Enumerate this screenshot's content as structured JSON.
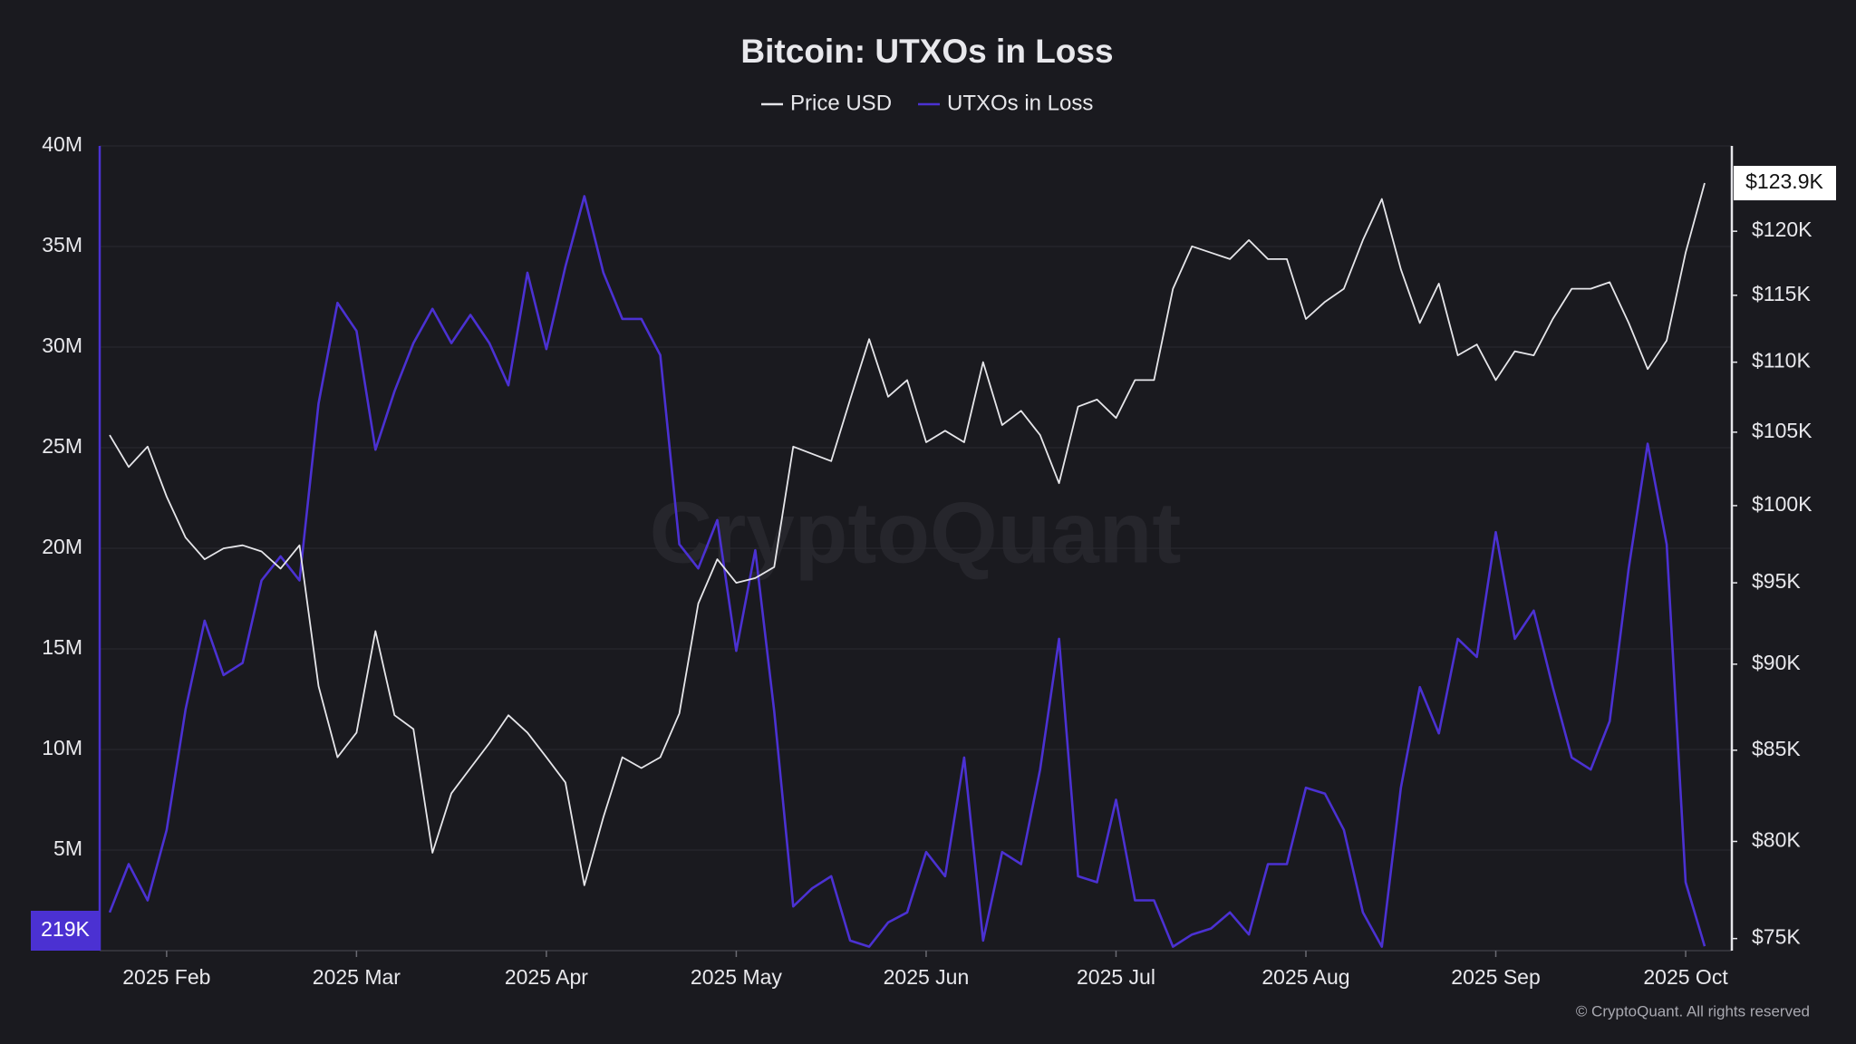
{
  "chart_data": {
    "type": "line",
    "title": "Bitcoin: UTXOs in Loss",
    "watermark": "CryptoQuant",
    "copyright": "© CryptoQuant. All rights reserved",
    "categories": [
      null,
      null,
      null,
      "2025 Feb",
      null,
      null,
      null,
      null,
      null,
      null,
      null,
      null,
      null,
      "2025 Mar",
      null,
      null,
      null,
      null,
      null,
      null,
      null,
      null,
      null,
      "2025 Apr",
      null,
      null,
      null,
      null,
      null,
      null,
      null,
      null,
      null,
      "2025 May",
      null,
      null,
      null,
      null,
      null,
      null,
      null,
      null,
      null,
      "2025 Jun",
      null,
      null,
      null,
      null,
      null,
      null,
      null,
      null,
      null,
      "2025 Jul",
      null,
      null,
      null,
      null,
      null,
      null,
      null,
      null,
      null,
      "2025 Aug",
      null,
      null,
      null,
      null,
      null,
      null,
      null,
      null,
      null,
      "2025 Sep",
      null,
      null,
      null,
      null,
      null,
      null,
      null,
      null,
      null,
      "2025 Oct",
      null
    ],
    "series": [
      {
        "name": "Price USD",
        "color": "#e6e6ea",
        "axis": "y2",
        "last_value_label": "$123.9K",
        "values": [
          104800,
          102600,
          104000,
          100600,
          97900,
          96500,
          97200,
          97400,
          97000,
          95900,
          97400,
          88700,
          84600,
          86000,
          92000,
          87000,
          86200,
          79400,
          82600,
          84000,
          85400,
          87000,
          86000,
          84600,
          83200,
          77700,
          81300,
          84600,
          84000,
          84600,
          87100,
          93700,
          96500,
          95000,
          95300,
          96000,
          104000,
          103500,
          103000,
          107300,
          111700,
          107500,
          108700,
          104300,
          105100,
          104300,
          110000,
          105500,
          106500,
          104800,
          101500,
          106800,
          107300,
          106000,
          108700,
          108700,
          115500,
          118800,
          118300,
          117800,
          119300,
          117800,
          117800,
          113200,
          114500,
          115500,
          119300,
          122600,
          117000,
          112900,
          115900,
          110500,
          111300,
          108700,
          110800,
          110500,
          113200,
          115500,
          115500,
          116000,
          112900,
          109500,
          111600,
          118300,
          123900
        ]
      },
      {
        "name": "UTXOs in Loss",
        "color": "#4b31d2",
        "last_value_label": "219K",
        "values": [
          1900000,
          4300000,
          2500000,
          6000000,
          12000000,
          16400000,
          13700000,
          14300000,
          18400000,
          19600000,
          18400000,
          27200000,
          32200000,
          30800000,
          24900000,
          27800000,
          30200000,
          31900000,
          30200000,
          31600000,
          30200000,
          28100000,
          33700000,
          29900000,
          34000000,
          37500000,
          33700000,
          31400000,
          31400000,
          29600000,
          20200000,
          19000000,
          21400000,
          14900000,
          19900000,
          11900000,
          2200000,
          3100000,
          3700000,
          500000,
          200000,
          1400000,
          1900000,
          4900000,
          3700000,
          9600000,
          500000,
          4900000,
          4300000,
          9000000,
          15500000,
          3700000,
          3400000,
          7500000,
          2500000,
          2500000,
          200000,
          800000,
          1100000,
          1900000,
          800000,
          4300000,
          4300000,
          8100000,
          7800000,
          6000000,
          1900000,
          200000,
          8100000,
          13100000,
          10800000,
          15500000,
          14600000,
          20800000,
          15500000,
          16900000,
          13100000,
          9600000,
          9000000,
          11400000,
          19000000,
          25200000,
          20200000,
          3400000,
          219000
        ]
      }
    ],
    "ylim": [
      0,
      40000000
    ],
    "yticks": [
      {
        "value": 5000000,
        "label": "5M"
      },
      {
        "value": 10000000,
        "label": "10M"
      },
      {
        "value": 15000000,
        "label": "15M"
      },
      {
        "value": 20000000,
        "label": "20M"
      },
      {
        "value": 25000000,
        "label": "25M"
      },
      {
        "value": 30000000,
        "label": "30M"
      },
      {
        "value": 35000000,
        "label": "35M"
      },
      {
        "value": 40000000,
        "label": "40M"
      }
    ],
    "y2lim": [
      74400,
      127000
    ],
    "y2log": true,
    "y2ticks": [
      {
        "value": 75000,
        "label": "$75K"
      },
      {
        "value": 80000,
        "label": "$80K"
      },
      {
        "value": 85000,
        "label": "$85K"
      },
      {
        "value": 90000,
        "label": "$90K"
      },
      {
        "value": 95000,
        "label": "$95K"
      },
      {
        "value": 100000,
        "label": "$100K"
      },
      {
        "value": 105000,
        "label": "$105K"
      },
      {
        "value": 110000,
        "label": "$110K"
      },
      {
        "value": 115000,
        "label": "$115K"
      },
      {
        "value": 120000,
        "label": "$120K"
      }
    ],
    "grid": true
  }
}
